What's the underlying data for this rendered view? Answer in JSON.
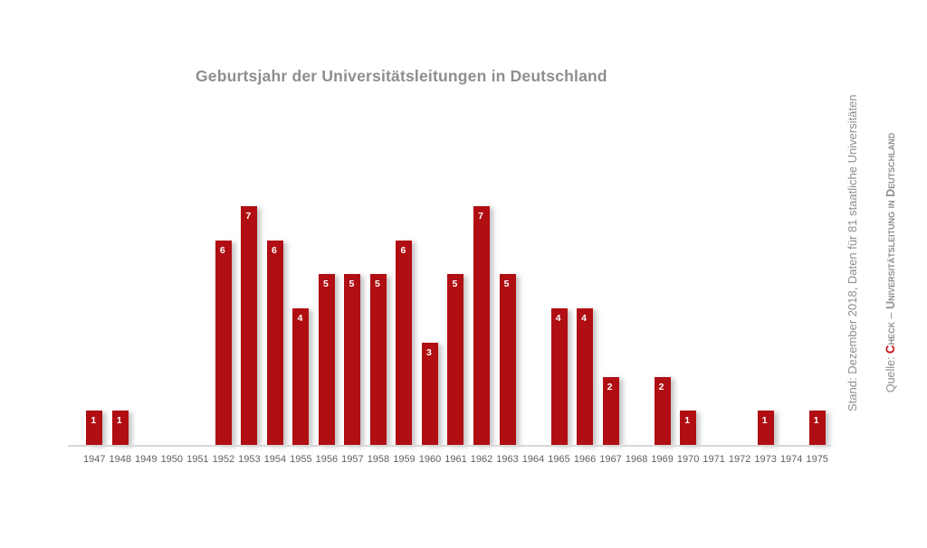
{
  "title": "Geburtsjahr der Universitätsleitungen in Deutschland",
  "side_note": {
    "line1": "Stand: Dezember 2018, Daten für 81 staatliche Universitäten",
    "line2_prefix": "Quelle: ",
    "brand_initial": "C",
    "brand_rest": "heck",
    "separator": " – ",
    "source_name": "Universitätsleitung in Deutschland"
  },
  "colors": {
    "bar": "#b00e13",
    "brand_red": "#cc1014",
    "title_gray": "#8e8e8e",
    "axis_label_gray": "#606060",
    "axis_line_gray": "#d8d8d8",
    "value_label": "#ffffff",
    "background": "#ffffff"
  },
  "chart_data": {
    "type": "bar",
    "title": "Geburtsjahr der Universitätsleitungen in Deutschland",
    "categories": [
      "1947",
      "1948",
      "1949",
      "1950",
      "1951",
      "1952",
      "1953",
      "1954",
      "1955",
      "1956",
      "1957",
      "1958",
      "1959",
      "1960",
      "1961",
      "1962",
      "1963",
      "1964",
      "1965",
      "1966",
      "1967",
      "1968",
      "1969",
      "1970",
      "1971",
      "1972",
      "1973",
      "1974",
      "1975"
    ],
    "values": [
      1,
      1,
      0,
      0,
      0,
      6,
      7,
      6,
      4,
      5,
      5,
      5,
      6,
      3,
      5,
      7,
      5,
      0,
      4,
      4,
      2,
      0,
      2,
      1,
      0,
      0,
      1,
      0,
      1
    ],
    "xlabel": "",
    "ylabel": "",
    "ylim": [
      0,
      7
    ],
    "grid": false,
    "legend": false,
    "value_labels": true,
    "bar_color": "#b00e13",
    "total": 81
  }
}
